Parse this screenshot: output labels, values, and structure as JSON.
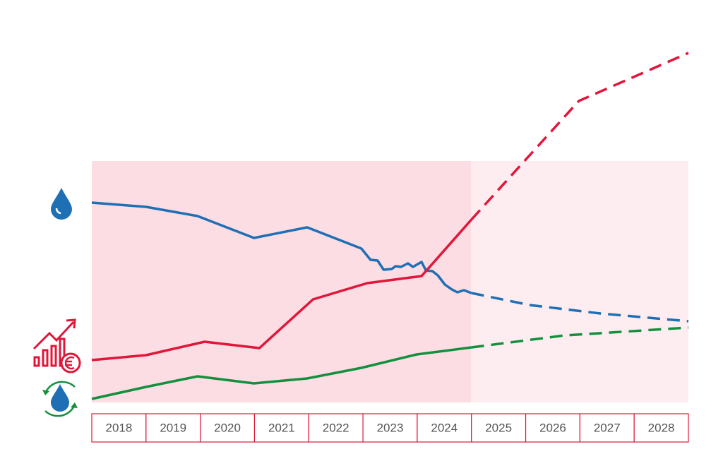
{
  "chart_data": {
    "type": "line",
    "categories": [
      "2018",
      "2019",
      "2020",
      "2021",
      "2022",
      "2023",
      "2024",
      "2025",
      "2026",
      "2027",
      "2028"
    ],
    "xlim": [
      2018,
      2029
    ],
    "ylim": [
      0,
      500
    ],
    "series": [
      {
        "color": "#1f6fb5",
        "dashed": false,
        "x": [
          2018,
          2019,
          2019.95,
          2020.99,
          2021.97,
          2022.97,
          2023.14,
          2023.27,
          2023.38,
          2023.53,
          2023.6,
          2023.7,
          2023.83,
          2023.92,
          2024.08,
          2024.16,
          2024.28,
          2024.38,
          2024.51,
          2024.64,
          2024.74,
          2024.86,
          2025
        ],
        "values": [
          283,
          277,
          264,
          233,
          248,
          218,
          202,
          201,
          188,
          189,
          193,
          192,
          197,
          192,
          199,
          187,
          186,
          180,
          167,
          160,
          156,
          159,
          155
        ]
      },
      {
        "color": "#1f6fb5",
        "dashed": true,
        "x": [
          2025,
          2026.07,
          2027.38,
          2029
        ],
        "values": [
          155,
          138,
          126,
          115
        ]
      },
      {
        "color": "#e0173a",
        "dashed": false,
        "x": [
          2018,
          2019,
          2020.08,
          2021.09,
          2022.08,
          2023.08,
          2024.08,
          2025
        ],
        "values": [
          60,
          67,
          86,
          77,
          146,
          169,
          179,
          259
        ]
      },
      {
        "color": "#e0173a",
        "dashed": true,
        "x": [
          2025,
          2026.98,
          2029
        ],
        "values": [
          259,
          427,
          495
        ]
      },
      {
        "color": "#12903d",
        "dashed": false,
        "x": [
          2018,
          2019,
          2019.95,
          2020.99,
          2021.97,
          2022.97,
          2023.99,
          2025
        ],
        "values": [
          5,
          22,
          37,
          27,
          34,
          49,
          68,
          78
        ]
      },
      {
        "color": "#12903d",
        "dashed": true,
        "x": [
          2025,
          2026.72,
          2029
        ],
        "values": [
          78,
          95,
          106
        ]
      }
    ]
  }
}
